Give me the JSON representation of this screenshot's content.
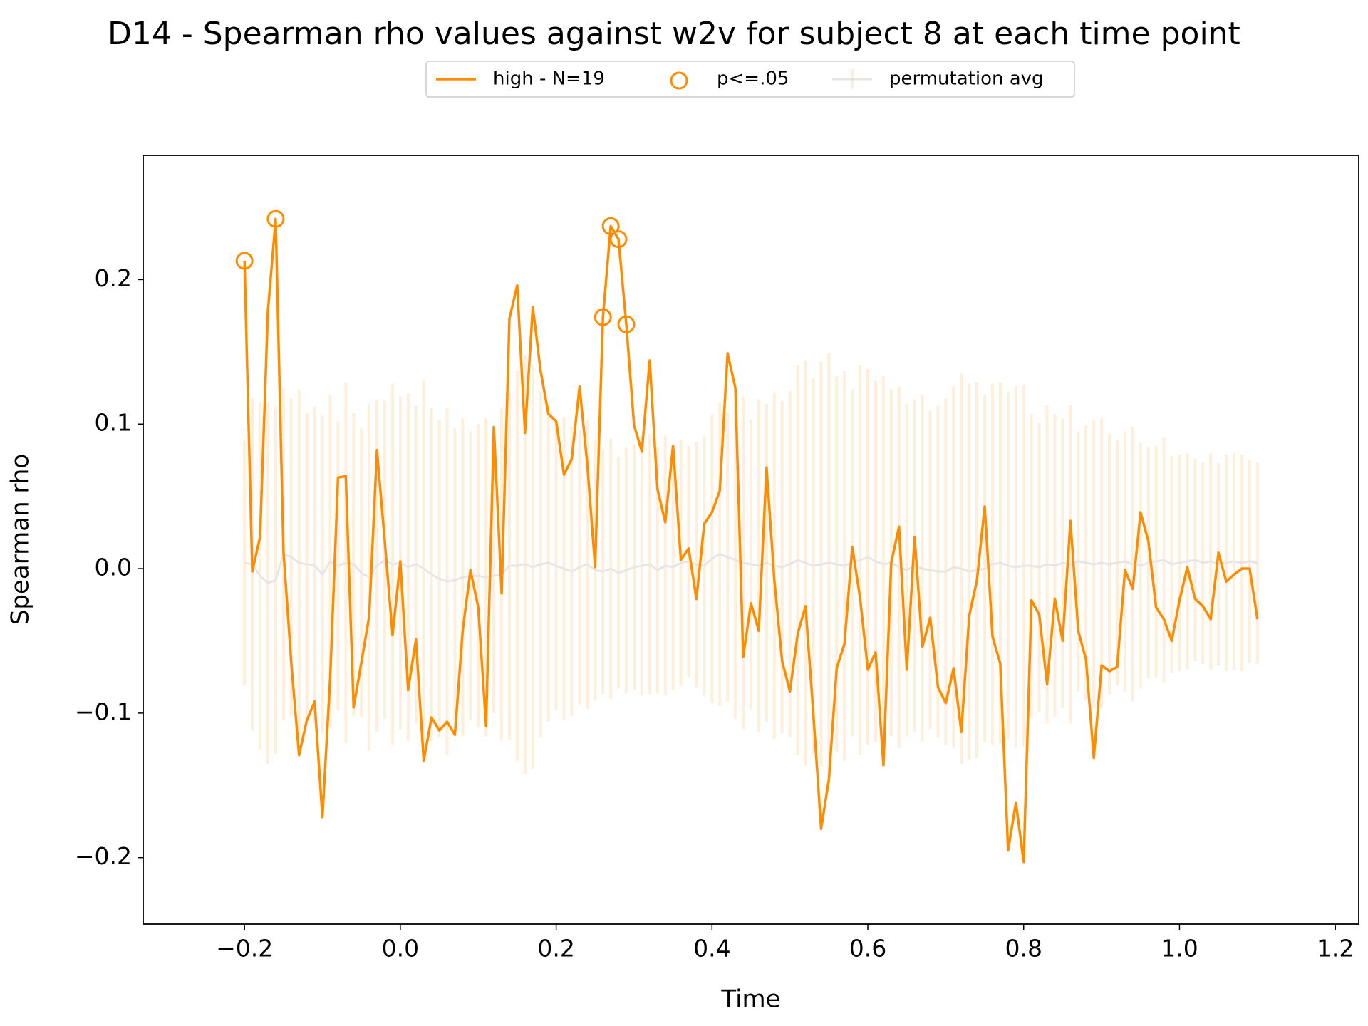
{
  "chart_data": {
    "type": "line",
    "title": "D14 - Spearman rho values against w2v for subject 8 at each time point",
    "x_label": "Time",
    "y_label": "Spearman rho",
    "xlim": [
      -0.33,
      1.23
    ],
    "ylim": [
      -0.246,
      0.286
    ],
    "xticks": [
      {
        "value": -0.2,
        "label": "−0.2"
      },
      {
        "value": 0,
        "label": "0.0"
      },
      {
        "value": 0.2,
        "label": "0.2"
      },
      {
        "value": 0.4,
        "label": "0.4"
      },
      {
        "value": 0.6,
        "label": "0.6"
      },
      {
        "value": 0.8,
        "label": "0.8"
      },
      {
        "value": 1,
        "label": "1.0"
      },
      {
        "value": 1.2,
        "label": "1.2"
      }
    ],
    "yticks": [
      {
        "value": -0.2,
        "label": "−0.2"
      },
      {
        "value": -0.1,
        "label": "−0.1"
      },
      {
        "value": 0,
        "label": "0.0"
      },
      {
        "value": 0.1,
        "label": "0.1"
      },
      {
        "value": 0.2,
        "label": "0.2"
      }
    ],
    "legend": "upper center",
    "x": [
      -0.2,
      -0.19,
      -0.18,
      -0.17,
      -0.16,
      -0.15,
      -0.14,
      -0.13,
      -0.12,
      -0.11,
      -0.1,
      -0.09,
      -0.08,
      -0.07,
      -0.06,
      -0.05,
      -0.04,
      -0.03,
      -0.02,
      -0.01,
      0,
      0.01,
      0.02,
      0.03,
      0.04,
      0.05,
      0.06,
      0.07,
      0.08,
      0.09,
      0.1,
      0.11,
      0.12,
      0.13,
      0.14,
      0.15,
      0.16,
      0.17,
      0.18,
      0.19,
      0.2,
      0.21,
      0.22,
      0.23,
      0.24,
      0.25,
      0.26,
      0.27,
      0.28,
      0.29,
      0.3,
      0.31,
      0.32,
      0.33,
      0.34,
      0.35,
      0.36,
      0.37,
      0.38,
      0.39,
      0.4,
      0.41,
      0.42,
      0.43,
      0.44,
      0.45,
      0.46,
      0.47,
      0.48,
      0.49,
      0.5,
      0.51,
      0.52,
      0.53,
      0.54,
      0.55,
      0.56,
      0.57,
      0.58,
      0.59,
      0.6,
      0.61,
      0.62,
      0.63,
      0.64,
      0.65,
      0.66,
      0.67,
      0.68,
      0.69,
      0.7,
      0.71,
      0.72,
      0.73,
      0.74,
      0.75,
      0.76,
      0.77,
      0.78,
      0.79,
      0.8,
      0.81,
      0.82,
      0.83,
      0.84,
      0.85,
      0.86,
      0.87,
      0.88,
      0.89,
      0.9,
      0.91,
      0.92,
      0.93,
      0.94,
      0.95,
      0.96,
      0.97,
      0.98,
      0.99,
      1,
      1.01,
      1.02,
      1.03,
      1.04,
      1.05,
      1.06,
      1.07,
      1.08,
      1.09,
      1.1
    ],
    "series": [
      {
        "name": "high - N=19",
        "color": "#ff8c00",
        "values": [
          0.213,
          -0.002,
          0.022,
          0.178,
          0.242,
          0.012,
          -0.065,
          -0.129,
          -0.105,
          -0.092,
          -0.172,
          -0.075,
          0.063,
          0.064,
          -0.096,
          -0.065,
          -0.033,
          0.082,
          0.019,
          -0.046,
          0.005,
          -0.084,
          -0.049,
          -0.133,
          -0.103,
          -0.112,
          -0.106,
          -0.115,
          -0.043,
          -0.001,
          -0.027,
          -0.109,
          0.098,
          -0.017,
          0.173,
          0.196,
          0.094,
          0.181,
          0.137,
          0.107,
          0.102,
          0.065,
          0.076,
          0.126,
          0.072,
          0.001,
          0.174,
          0.237,
          0.228,
          0.169,
          0.099,
          0.081,
          0.144,
          0.055,
          0.032,
          0.085,
          0.006,
          0.014,
          -0.021,
          0.031,
          0.039,
          0.054,
          0.149,
          0.125,
          -0.061,
          -0.024,
          -0.043,
          0.07,
          -0.008,
          -0.064,
          -0.085,
          -0.045,
          -0.026,
          -0.1,
          -0.18,
          -0.146,
          -0.069,
          -0.052,
          0.015,
          -0.02,
          -0.07,
          -0.058,
          -0.136,
          0.004,
          0.029,
          -0.07,
          0.022,
          -0.054,
          -0.034,
          -0.082,
          -0.093,
          -0.069,
          -0.113,
          -0.033,
          -0.008,
          0.043,
          -0.047,
          -0.066,
          -0.195,
          -0.162,
          -0.203,
          -0.022,
          -0.032,
          -0.08,
          -0.021,
          -0.05,
          0.033,
          -0.043,
          -0.063,
          -0.131,
          -0.067,
          -0.071,
          -0.068,
          -0.001,
          -0.014,
          0.039,
          0.019,
          -0.027,
          -0.035,
          -0.05,
          -0.022,
          0.001,
          -0.021,
          -0.026,
          -0.035,
          0.011,
          -0.009,
          -0.004,
          0,
          0,
          -0.035
        ]
      },
      {
        "name": "p<=.05",
        "type": "scatter",
        "color": "#ff8c00",
        "x": [
          -0.2,
          -0.16,
          0.26,
          0.27,
          0.28,
          0.29
        ],
        "values": [
          0.213,
          0.242,
          0.174,
          0.237,
          0.228,
          0.169
        ]
      },
      {
        "name": "permutation avg",
        "type": "errorbar",
        "color": "#ff8c00",
        "line_color": "#e6e6e6",
        "values": [
          0.004,
          0.003,
          -0.005,
          -0.01,
          -0.008,
          0.01,
          0.008,
          0.004,
          0.003,
          0.002,
          -0.004,
          0.005,
          0.002,
          0.004,
          0.003,
          -0.003,
          -0.006,
          0.002,
          0.006,
          0.003,
          0.004,
          0.001,
          0.003,
          0,
          -0.004,
          -0.007,
          -0.009,
          -0.008,
          -0.006,
          -0.005,
          -0.005,
          -0.006,
          -0.005,
          -0.004,
          0.002,
          0.002,
          0.003,
          0.001,
          0.003,
          0.004,
          0.002,
          0,
          -0.002,
          0.001,
          0.003,
          -0.001,
          -0.002,
          0,
          -0.003,
          -0.001,
          0.001,
          0.002,
          0.003,
          -0.001,
          0.002,
          0.001,
          0.004,
          0.005,
          0.003,
          0.002,
          0.007,
          0.01,
          0.008,
          0.006,
          0.004,
          0.003,
          0.002,
          0.004,
          0.002,
          0.001,
          0.003,
          0.006,
          0.004,
          0.002,
          0.003,
          0.004,
          0.003,
          0.002,
          0.004,
          0.006,
          0.008,
          0.005,
          0.003,
          0.004,
          0.001,
          -0.001,
          0.002,
          0,
          -0.001,
          -0.002,
          -0.002,
          0.001,
          0,
          -0.002,
          -0.001,
          0,
          0.003,
          0.004,
          0.002,
          0.001,
          0.002,
          0.002,
          0.001,
          0.003,
          0.002,
          0.004,
          0.003,
          0.005,
          0.004,
          0.003,
          0.004,
          0.003,
          0.004,
          0.005,
          0.003,
          0.002,
          0.004,
          0.005,
          0.006,
          0.003,
          0.004,
          0.005,
          0.006,
          0.004,
          0.005,
          0.003,
          0.004,
          0.005,
          0.004,
          0.005,
          0.004
        ],
        "errors": [
          0.085,
          0.115,
          0.12,
          0.125,
          0.12,
          0.115,
          0.11,
          0.12,
          0.105,
          0.11,
          0.11,
          0.115,
          0.1,
          0.125,
          0.105,
          0.1,
          0.12,
          0.115,
          0.11,
          0.125,
          0.115,
          0.12,
          0.11,
          0.13,
          0.115,
          0.11,
          0.12,
          0.105,
          0.11,
          0.1,
          0.105,
          0.11,
          0.095,
          0.115,
          0.12,
          0.135,
          0.145,
          0.14,
          0.12,
          0.11,
          0.1,
          0.105,
          0.1,
          0.095,
          0.1,
          0.09,
          0.085,
          0.09,
          0.08,
          0.085,
          0.085,
          0.09,
          0.09,
          0.085,
          0.09,
          0.085,
          0.085,
          0.08,
          0.085,
          0.09,
          0.1,
          0.105,
          0.1,
          0.11,
          0.115,
          0.1,
          0.115,
          0.11,
          0.12,
          0.115,
          0.12,
          0.135,
          0.14,
          0.13,
          0.14,
          0.145,
          0.13,
          0.135,
          0.12,
          0.135,
          0.13,
          0.125,
          0.13,
          0.12,
          0.125,
          0.115,
          0.115,
          0.12,
          0.11,
          0.115,
          0.12,
          0.125,
          0.135,
          0.13,
          0.13,
          0.12,
          0.125,
          0.125,
          0.12,
          0.125,
          0.125,
          0.105,
          0.1,
          0.11,
          0.105,
          0.1,
          0.11,
          0.09,
          0.095,
          0.1,
          0.1,
          0.09,
          0.085,
          0.09,
          0.095,
          0.085,
          0.08,
          0.08,
          0.085,
          0.075,
          0.075,
          0.075,
          0.07,
          0.07,
          0.075,
          0.07,
          0.075,
          0.075,
          0.075,
          0.07,
          0.07
        ]
      }
    ]
  }
}
